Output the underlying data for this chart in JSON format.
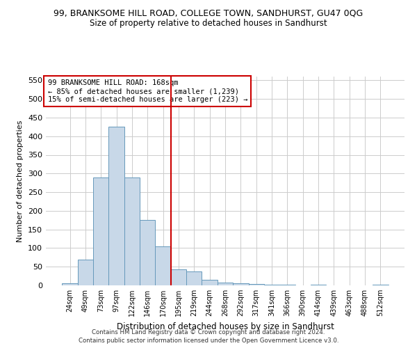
{
  "title": "99, BRANKSOME HILL ROAD, COLLEGE TOWN, SANDHURST, GU47 0QG",
  "subtitle": "Size of property relative to detached houses in Sandhurst",
  "xlabel": "Distribution of detached houses by size in Sandhurst",
  "ylabel": "Number of detached properties",
  "bar_labels": [
    "24sqm",
    "49sqm",
    "73sqm",
    "97sqm",
    "122sqm",
    "146sqm",
    "170sqm",
    "195sqm",
    "219sqm",
    "244sqm",
    "268sqm",
    "292sqm",
    "317sqm",
    "341sqm",
    "366sqm",
    "390sqm",
    "414sqm",
    "439sqm",
    "463sqm",
    "488sqm",
    "512sqm"
  ],
  "bar_values": [
    5,
    70,
    290,
    425,
    290,
    175,
    105,
    43,
    38,
    15,
    8,
    5,
    3,
    1,
    1,
    0,
    2,
    0,
    0,
    0,
    2
  ],
  "bar_color": "#c8d8e8",
  "bar_edge_color": "#6699bb",
  "vline_x": 6.5,
  "vline_color": "#cc0000",
  "ylim": [
    0,
    560
  ],
  "yticks": [
    0,
    50,
    100,
    150,
    200,
    250,
    300,
    350,
    400,
    450,
    500,
    550
  ],
  "annotation_title": "99 BRANKSOME HILL ROAD: 168sqm",
  "annotation_line1": "← 85% of detached houses are smaller (1,239)",
  "annotation_line2": "15% of semi-detached houses are larger (223) →",
  "annotation_box_color": "#ffffff",
  "annotation_box_edge": "#cc0000",
  "footer1": "Contains HM Land Registry data © Crown copyright and database right 2024.",
  "footer2": "Contains public sector information licensed under the Open Government Licence v3.0.",
  "background_color": "#ffffff",
  "grid_color": "#cccccc"
}
